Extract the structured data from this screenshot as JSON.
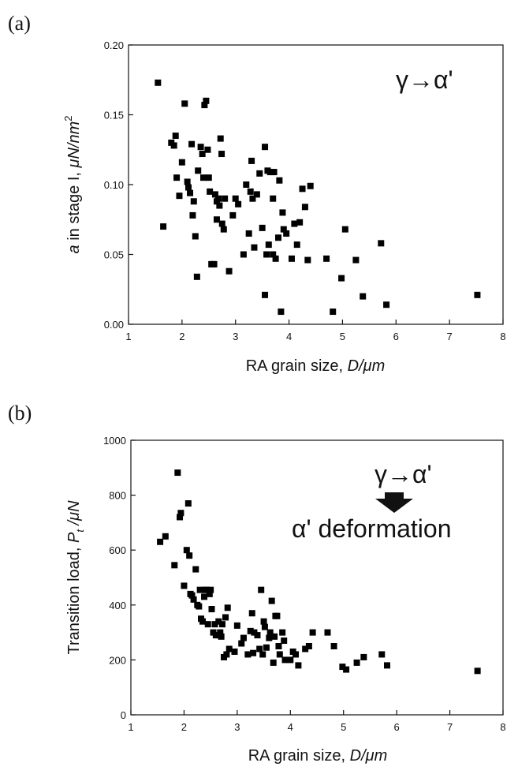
{
  "chart_data": [
    {
      "type": "scatter",
      "panel_label": "(a)",
      "xlabel": "RA grain size, D/μm",
      "xlabel_parts": {
        "plain": "RA grain size, ",
        "italic": "D/μm"
      },
      "ylabel": "a in stage I, μN/nm²",
      "ylabel_parts": {
        "italic_a": "a",
        "mid": " in stage I, ",
        "italic_unit": "μN/nm",
        "sup": "2"
      },
      "xlim": [
        1,
        8
      ],
      "ylim": [
        0,
        0.2
      ],
      "xticks": [
        1,
        2,
        3,
        4,
        5,
        6,
        7,
        8
      ],
      "yticks": [
        0.0,
        0.05,
        0.1,
        0.15,
        0.2
      ],
      "yticklabels": [
        "0.00",
        "0.05",
        "0.10",
        "0.15",
        "0.20"
      ],
      "annotation": "γ→α'",
      "grid": false,
      "points": [
        [
          1.55,
          0.173
        ],
        [
          1.65,
          0.07
        ],
        [
          1.8,
          0.13
        ],
        [
          1.85,
          0.128
        ],
        [
          1.88,
          0.135
        ],
        [
          1.9,
          0.105
        ],
        [
          1.95,
          0.092
        ],
        [
          2.0,
          0.116
        ],
        [
          2.05,
          0.158
        ],
        [
          2.1,
          0.102
        ],
        [
          2.12,
          0.098
        ],
        [
          2.15,
          0.094
        ],
        [
          2.18,
          0.129
        ],
        [
          2.2,
          0.078
        ],
        [
          2.22,
          0.088
        ],
        [
          2.25,
          0.063
        ],
        [
          2.28,
          0.034
        ],
        [
          2.3,
          0.11
        ],
        [
          2.35,
          0.127
        ],
        [
          2.38,
          0.122
        ],
        [
          2.4,
          0.105
        ],
        [
          2.42,
          0.157
        ],
        [
          2.45,
          0.16
        ],
        [
          2.48,
          0.125
        ],
        [
          2.5,
          0.105
        ],
        [
          2.52,
          0.095
        ],
        [
          2.55,
          0.043
        ],
        [
          2.58,
          0.043
        ],
        [
          2.6,
          0.043
        ],
        [
          2.62,
          0.093
        ],
        [
          2.65,
          0.075
        ],
        [
          2.65,
          0.088
        ],
        [
          2.68,
          0.09
        ],
        [
          2.7,
          0.085
        ],
        [
          2.72,
          0.133
        ],
        [
          2.74,
          0.122
        ],
        [
          2.75,
          0.072
        ],
        [
          2.78,
          0.068
        ],
        [
          2.8,
          0.09
        ],
        [
          2.88,
          0.038
        ],
        [
          2.95,
          0.078
        ],
        [
          3.0,
          0.09
        ],
        [
          3.05,
          0.086
        ],
        [
          3.15,
          0.05
        ],
        [
          3.2,
          0.1
        ],
        [
          3.25,
          0.065
        ],
        [
          3.28,
          0.095
        ],
        [
          3.3,
          0.117
        ],
        [
          3.32,
          0.09
        ],
        [
          3.35,
          0.055
        ],
        [
          3.4,
          0.093
        ],
        [
          3.45,
          0.108
        ],
        [
          3.5,
          0.069
        ],
        [
          3.55,
          0.127
        ],
        [
          3.58,
          0.05
        ],
        [
          3.6,
          0.11
        ],
        [
          3.55,
          0.021
        ],
        [
          3.62,
          0.057
        ],
        [
          3.65,
          0.109
        ],
        [
          3.7,
          0.05
        ],
        [
          3.7,
          0.09
        ],
        [
          3.72,
          0.109
        ],
        [
          3.75,
          0.047
        ],
        [
          3.8,
          0.062
        ],
        [
          3.82,
          0.103
        ],
        [
          3.85,
          0.009
        ],
        [
          3.88,
          0.08
        ],
        [
          3.9,
          0.068
        ],
        [
          3.95,
          0.065
        ],
        [
          4.05,
          0.047
        ],
        [
          4.1,
          0.072
        ],
        [
          4.15,
          0.057
        ],
        [
          4.2,
          0.073
        ],
        [
          4.25,
          0.097
        ],
        [
          4.3,
          0.084
        ],
        [
          4.35,
          0.046
        ],
        [
          4.4,
          0.099
        ],
        [
          4.7,
          0.047
        ],
        [
          4.82,
          0.009
        ],
        [
          4.98,
          0.033
        ],
        [
          5.05,
          0.068
        ],
        [
          5.25,
          0.046
        ],
        [
          5.38,
          0.02
        ],
        [
          5.72,
          0.058
        ],
        [
          5.82,
          0.014
        ],
        [
          7.52,
          0.021
        ]
      ]
    },
    {
      "type": "scatter",
      "panel_label": "(b)",
      "xlabel": "RA grain size, D/μm",
      "xlabel_parts": {
        "plain": "RA grain size, ",
        "italic": "D/μm"
      },
      "ylabel": "Transition load, Pt /μN",
      "ylabel_parts": {
        "plain": "Transition load, ",
        "italic_p": "P",
        "sub": "t",
        "italic_unit": " /μN"
      },
      "xlim": [
        1,
        8
      ],
      "ylim": [
        0,
        1000
      ],
      "xticks": [
        1,
        2,
        3,
        4,
        5,
        6,
        7,
        8
      ],
      "yticks": [
        0,
        200,
        400,
        600,
        800,
        1000
      ],
      "yticklabels": [
        "0",
        "200",
        "400",
        "600",
        "800",
        "1000"
      ],
      "annotation_top": "γ→α'",
      "annotation_bottom": "α' deformation",
      "grid": false,
      "points": [
        [
          1.55,
          630
        ],
        [
          1.65,
          650
        ],
        [
          1.82,
          545
        ],
        [
          1.88,
          882
        ],
        [
          1.92,
          720
        ],
        [
          1.94,
          735
        ],
        [
          2.0,
          470
        ],
        [
          2.05,
          600
        ],
        [
          2.08,
          770
        ],
        [
          2.1,
          580
        ],
        [
          2.12,
          440
        ],
        [
          2.15,
          435
        ],
        [
          2.18,
          420
        ],
        [
          2.22,
          530
        ],
        [
          2.25,
          400
        ],
        [
          2.28,
          395
        ],
        [
          2.3,
          455
        ],
        [
          2.32,
          350
        ],
        [
          2.35,
          340
        ],
        [
          2.38,
          430
        ],
        [
          2.4,
          455
        ],
        [
          2.42,
          455
        ],
        [
          2.45,
          330
        ],
        [
          2.48,
          440
        ],
        [
          2.5,
          455
        ],
        [
          2.52,
          385
        ],
        [
          2.55,
          300
        ],
        [
          2.58,
          330
        ],
        [
          2.6,
          290
        ],
        [
          2.62,
          290
        ],
        [
          2.65,
          340
        ],
        [
          2.68,
          300
        ],
        [
          2.7,
          285
        ],
        [
          2.72,
          330
        ],
        [
          2.75,
          210
        ],
        [
          2.78,
          355
        ],
        [
          2.8,
          220
        ],
        [
          2.82,
          390
        ],
        [
          2.85,
          240
        ],
        [
          2.95,
          230
        ],
        [
          3.0,
          325
        ],
        [
          3.08,
          260
        ],
        [
          3.12,
          280
        ],
        [
          3.2,
          220
        ],
        [
          3.25,
          305
        ],
        [
          3.28,
          370
        ],
        [
          3.3,
          225
        ],
        [
          3.32,
          300
        ],
        [
          3.38,
          290
        ],
        [
          3.42,
          240
        ],
        [
          3.45,
          455
        ],
        [
          3.48,
          220
        ],
        [
          3.5,
          340
        ],
        [
          3.52,
          320
        ],
        [
          3.55,
          245
        ],
        [
          3.6,
          280
        ],
        [
          3.62,
          300
        ],
        [
          3.65,
          415
        ],
        [
          3.68,
          190
        ],
        [
          3.7,
          285
        ],
        [
          3.72,
          360
        ],
        [
          3.75,
          360
        ],
        [
          3.78,
          250
        ],
        [
          3.8,
          220
        ],
        [
          3.85,
          300
        ],
        [
          3.88,
          270
        ],
        [
          3.9,
          200
        ],
        [
          4.0,
          200
        ],
        [
          4.05,
          230
        ],
        [
          4.1,
          220
        ],
        [
          4.15,
          180
        ],
        [
          4.28,
          240
        ],
        [
          4.35,
          250
        ],
        [
          4.42,
          300
        ],
        [
          4.7,
          300
        ],
        [
          4.82,
          250
        ],
        [
          4.98,
          175
        ],
        [
          5.05,
          165
        ],
        [
          5.25,
          190
        ],
        [
          5.38,
          210
        ],
        [
          5.72,
          220
        ],
        [
          5.82,
          180
        ],
        [
          7.52,
          160
        ]
      ]
    }
  ]
}
